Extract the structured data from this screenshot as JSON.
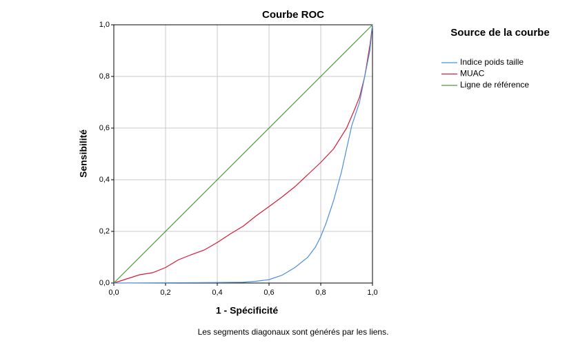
{
  "chart_data": {
    "type": "line",
    "title": "Courbe ROC",
    "x_label": "1 - Spécificité",
    "y_label": "Sensibilité",
    "footnote": "Les segments diagonaux sont générés par les liens.",
    "legend_title": "Source de la courbe",
    "xlim": [
      0,
      1
    ],
    "ylim": [
      0,
      1
    ],
    "xticks": [
      {
        "value": 0,
        "label": "0,0"
      },
      {
        "value": 0.2,
        "label": "0,2"
      },
      {
        "value": 0.4,
        "label": "0,4"
      },
      {
        "value": 0.6,
        "label": "0,6"
      },
      {
        "value": 0.8,
        "label": "0,8"
      },
      {
        "value": 1,
        "label": "1,0"
      }
    ],
    "yticks": [
      {
        "value": 0,
        "label": "0,0"
      },
      {
        "value": 0.2,
        "label": "0,2"
      },
      {
        "value": 0.4,
        "label": "0,4"
      },
      {
        "value": 0.6,
        "label": "0,6"
      },
      {
        "value": 0.8,
        "label": "0,8"
      },
      {
        "value": 1,
        "label": "1,0"
      }
    ],
    "grid": true,
    "series": [
      {
        "name": "Indice poids taille",
        "color": "#4a8fd9",
        "x": [
          0,
          0.4,
          0.5,
          0.55,
          0.6,
          0.65,
          0.7,
          0.75,
          0.78,
          0.8,
          0.82,
          0.85,
          0.88,
          0.9,
          0.92,
          0.95,
          0.97,
          0.99,
          1
        ],
        "values": [
          0,
          0.002,
          0.003,
          0.007,
          0.013,
          0.03,
          0.06,
          0.1,
          0.14,
          0.18,
          0.23,
          0.32,
          0.43,
          0.52,
          0.61,
          0.7,
          0.8,
          0.9,
          1
        ]
      },
      {
        "name": "MUAC",
        "color": "#d6183a",
        "x": [
          0,
          0.05,
          0.1,
          0.15,
          0.2,
          0.25,
          0.3,
          0.35,
          0.4,
          0.45,
          0.5,
          0.55,
          0.6,
          0.65,
          0.7,
          0.75,
          0.8,
          0.85,
          0.9,
          0.93,
          0.95,
          0.97,
          0.99,
          1
        ],
        "values": [
          0,
          0.016,
          0.032,
          0.04,
          0.06,
          0.09,
          0.11,
          0.128,
          0.157,
          0.19,
          0.22,
          0.26,
          0.296,
          0.333,
          0.373,
          0.42,
          0.467,
          0.52,
          0.6,
          0.67,
          0.72,
          0.8,
          0.92,
          1
        ]
      },
      {
        "name": "Ligne de référence",
        "color": "#4a9a3a",
        "x": [
          0,
          1
        ],
        "values": [
          0,
          1
        ]
      }
    ]
  }
}
